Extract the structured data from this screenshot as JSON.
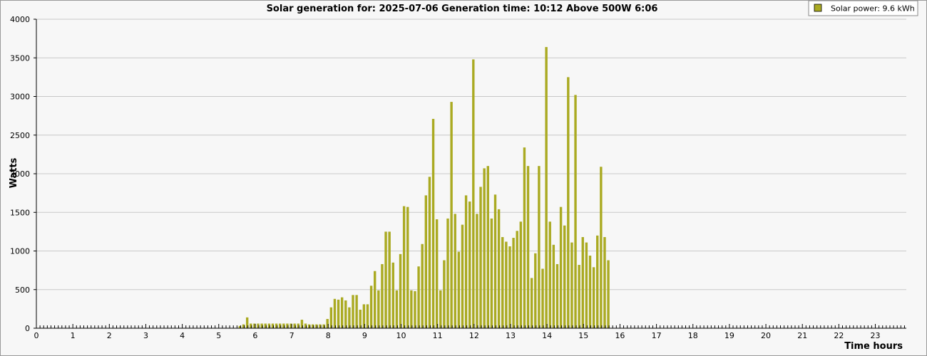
{
  "chart_data": {
    "type": "bar",
    "title": "Solar generation for: 2025-07-06 Generation time: 10:12 Above 500W 6:06",
    "xlabel": "Time hours",
    "ylabel": "Watts",
    "xlim": [
      0,
      23.85
    ],
    "ylim": [
      0,
      4000
    ],
    "yticks": [
      "0",
      "500",
      "1000",
      "1500",
      "2000",
      "2500",
      "3000",
      "3500",
      "4000"
    ],
    "xticks": [
      "0",
      "1",
      "2",
      "3",
      "4",
      "5",
      "6",
      "7",
      "8",
      "9",
      "10",
      "11",
      "12",
      "13",
      "14",
      "15",
      "16",
      "17",
      "18",
      "19",
      "20",
      "21",
      "22",
      "23"
    ],
    "grid": true,
    "legend_position": "top-right",
    "series": [
      {
        "name": "Solar power: 9.6 kWh",
        "color": "#aaaa22",
        "x": [
          5.58,
          5.68,
          5.78,
          5.88,
          5.98,
          6.08,
          6.18,
          6.28,
          6.38,
          6.48,
          6.58,
          6.68,
          6.78,
          6.88,
          6.98,
          7.08,
          7.18,
          7.28,
          7.38,
          7.48,
          7.58,
          7.68,
          7.78,
          7.88,
          7.98,
          8.08,
          8.18,
          8.28,
          8.38,
          8.48,
          8.58,
          8.68,
          8.78,
          8.88,
          8.98,
          9.08,
          9.18,
          9.28,
          9.38,
          9.48,
          9.58,
          9.68,
          9.78,
          9.88,
          9.98,
          10.08,
          10.18,
          10.28,
          10.38,
          10.48,
          10.58,
          10.68,
          10.78,
          10.88,
          10.98,
          11.08,
          11.18,
          11.28,
          11.38,
          11.48,
          11.58,
          11.68,
          11.78,
          11.88,
          11.98,
          12.08,
          12.18,
          12.28,
          12.38,
          12.48,
          12.58,
          12.68,
          12.78,
          12.88,
          12.98,
          13.08,
          13.18,
          13.28,
          13.38,
          13.48,
          13.58,
          13.68,
          13.78,
          13.88,
          13.98,
          14.08,
          14.18,
          14.28,
          14.38,
          14.48,
          14.58,
          14.68,
          14.78,
          14.88,
          14.98,
          15.08,
          15.18,
          15.28,
          15.38,
          15.48,
          15.58,
          15.68
        ],
        "values": [
          30,
          50,
          140,
          60,
          60,
          60,
          60,
          60,
          60,
          60,
          60,
          60,
          60,
          60,
          60,
          60,
          60,
          110,
          60,
          50,
          50,
          50,
          50,
          50,
          120,
          270,
          380,
          370,
          400,
          360,
          270,
          430,
          430,
          240,
          310,
          310,
          550,
          740,
          490,
          830,
          1250,
          1250,
          850,
          490,
          960,
          1580,
          1570,
          490,
          480,
          800,
          1090,
          1720,
          1960,
          2710,
          1410,
          490,
          880,
          1420,
          2930,
          1480,
          990,
          1340,
          1720,
          1640,
          3480,
          1480,
          1830,
          2070,
          2100,
          1420,
          1730,
          1540,
          1180,
          1120,
          1060,
          1170,
          1260,
          1380,
          2340,
          2100,
          650,
          970,
          2100,
          770,
          3640,
          1380,
          1080,
          830,
          1570,
          1330,
          3250,
          1110,
          3020,
          820,
          1180,
          1110,
          940,
          790,
          1200,
          2090,
          1180,
          880
        ]
      }
    ]
  }
}
